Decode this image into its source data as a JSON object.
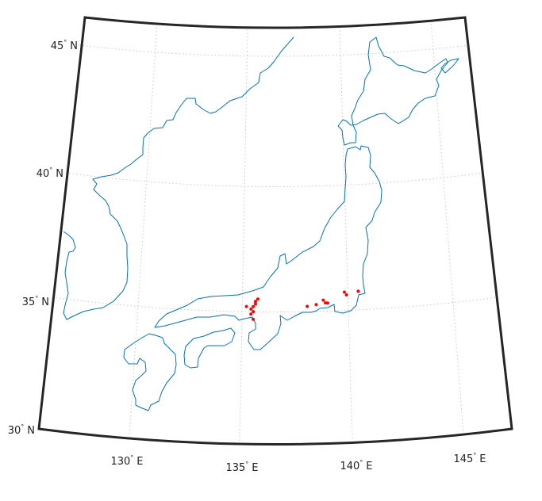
{
  "map": {
    "type": "map",
    "projection": "conic (Lambert)",
    "region": "Japan and surrounding coast",
    "lat_range": [
      30,
      46
    ],
    "lon_range": [
      126,
      146
    ],
    "lat_labels": [
      {
        "value": 45,
        "deg": "45",
        "sym": "°",
        "hemi": "N"
      },
      {
        "value": 40,
        "deg": "40",
        "sym": "°",
        "hemi": "N"
      },
      {
        "value": 35,
        "deg": "35",
        "sym": "°",
        "hemi": "N"
      },
      {
        "value": 30,
        "deg": "30",
        "sym": "°",
        "hemi": "N"
      }
    ],
    "lon_labels": [
      {
        "value": 130,
        "deg": "130",
        "sym": "°",
        "hemi": "E"
      },
      {
        "value": 135,
        "deg": "135",
        "sym": "°",
        "hemi": "E"
      },
      {
        "value": 140,
        "deg": "140",
        "sym": "°",
        "hemi": "E"
      },
      {
        "value": 145,
        "deg": "145",
        "sym": "°",
        "hemi": "E"
      }
    ],
    "gridline_style": "dotted",
    "colors": {
      "coast": "#0072bd",
      "points": "#ff0000",
      "frame": "#262626",
      "grid": "#c8c8c8",
      "background": "#ffffff"
    },
    "point_markers": [
      {
        "lon": 135.2,
        "lat": 34.7
      },
      {
        "lon": 135.4,
        "lat": 34.6
      },
      {
        "lon": 135.5,
        "lat": 34.7
      },
      {
        "lon": 135.6,
        "lat": 34.8
      },
      {
        "lon": 135.5,
        "lat": 34.5
      },
      {
        "lon": 135.4,
        "lat": 34.4
      },
      {
        "lon": 135.5,
        "lat": 34.2
      },
      {
        "lon": 135.6,
        "lat": 34.9
      },
      {
        "lon": 135.7,
        "lat": 35.0
      },
      {
        "lon": 137.9,
        "lat": 34.8
      },
      {
        "lon": 138.3,
        "lat": 34.9
      },
      {
        "lon": 138.6,
        "lat": 35.1
      },
      {
        "lon": 138.7,
        "lat": 35.0
      },
      {
        "lon": 138.8,
        "lat": 35.0
      },
      {
        "lon": 139.5,
        "lat": 35.5
      },
      {
        "lon": 139.6,
        "lat": 35.4
      },
      {
        "lon": 140.1,
        "lat": 35.6
      }
    ]
  }
}
